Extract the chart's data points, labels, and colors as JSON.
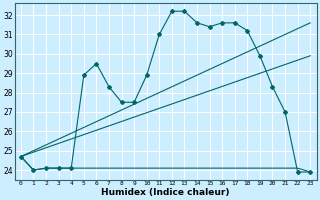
{
  "title": "",
  "xlabel": "Humidex (Indice chaleur)",
  "ylabel": "",
  "background_color": "#cceeff",
  "grid_color": "#ffffff",
  "line_color": "#006666",
  "xlim": [
    -0.5,
    23.5
  ],
  "ylim": [
    23.5,
    32.6
  ],
  "xticks": [
    0,
    1,
    2,
    3,
    4,
    5,
    6,
    7,
    8,
    9,
    10,
    11,
    12,
    13,
    14,
    15,
    16,
    17,
    18,
    19,
    20,
    21,
    22,
    23
  ],
  "yticks": [
    24,
    25,
    26,
    27,
    28,
    29,
    30,
    31,
    32
  ],
  "series1": [
    24.7,
    24.0,
    24.1,
    24.1,
    24.1,
    28.9,
    29.5,
    28.3,
    27.5,
    27.5,
    28.9,
    31.0,
    32.2,
    32.2,
    31.6,
    31.4,
    31.6,
    31.6,
    31.2,
    29.9,
    28.3,
    27.0,
    23.9,
    23.9
  ],
  "series2": [
    24.7,
    24.0,
    24.1,
    24.1,
    24.1,
    24.1,
    24.1,
    24.1,
    24.1,
    24.1,
    24.1,
    24.1,
    24.1,
    24.1,
    24.1,
    24.1,
    24.1,
    24.1,
    24.1,
    24.1,
    24.1,
    24.1,
    24.1,
    23.9
  ],
  "series3_x": [
    0,
    23
  ],
  "series3_y": [
    24.7,
    31.6
  ],
  "series4_x": [
    0,
    23
  ],
  "series4_y": [
    24.7,
    29.9
  ]
}
